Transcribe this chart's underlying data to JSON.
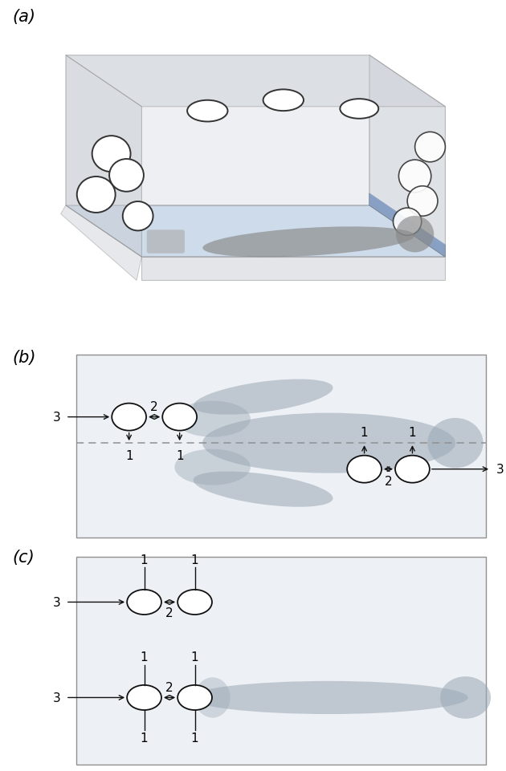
{
  "panel_a_label": "(a)",
  "panel_b_label": "(b)",
  "panel_c_label": "(c)",
  "net_color": "#c8cdd4",
  "net_edge_color": "#909090",
  "body_color": "#9aa8b5",
  "body_alpha": 0.55,
  "hole_face": "white",
  "hole_edge": "#333333",
  "bed_floor_color": "#c5d5e8",
  "blue_color": "#2a5faa",
  "dashed_color": "#909090",
  "meas_color": "#111111",
  "bg_color": "white",
  "box_bg": "#edf0f4",
  "box_edge": "#909090",
  "label_fontsize": 15,
  "meas_fontsize": 11
}
